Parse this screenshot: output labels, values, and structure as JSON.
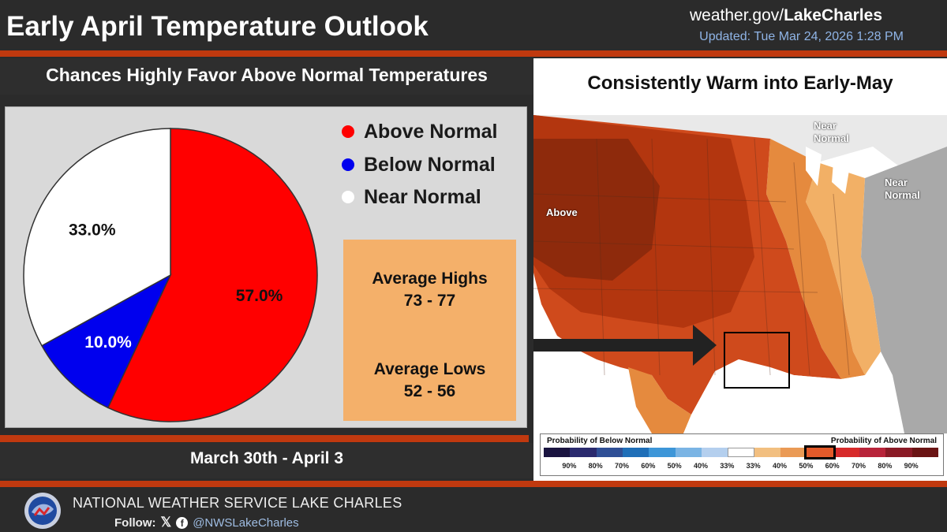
{
  "header": {
    "title": "Early April Temperature Outlook",
    "site_prefix": "weather.gov/",
    "site_office": "LakeCharles",
    "updated": "Updated: Tue Mar 24, 2026 1:28 PM"
  },
  "left": {
    "subtitle": "Chances Highly Favor Above Normal Temperatures",
    "date_range": "March 30th - April 3",
    "legend": [
      {
        "label": "Above Normal",
        "color": "#ff0000"
      },
      {
        "label": "Below Normal",
        "color": "#0000ee"
      },
      {
        "label": "Near Normal",
        "color": "#ffffff"
      }
    ],
    "averages": {
      "highs_label": "Average Highs",
      "highs_range": "73 - 77",
      "lows_label": "Average Lows",
      "lows_range": "52 - 56"
    }
  },
  "chart_data": {
    "type": "pie",
    "title": "Chances Highly Favor Above Normal Temperatures",
    "categories": [
      "Above Normal",
      "Below Normal",
      "Near Normal"
    ],
    "values": [
      57.0,
      10.0,
      33.0
    ],
    "labels": [
      "57.0%",
      "10.0%",
      "33.0%"
    ],
    "colors": [
      "#ff0000",
      "#0000ee",
      "#ffffff"
    ],
    "legend_position": "right"
  },
  "map": {
    "title": "Consistently Warm into Early-May",
    "labels": {
      "above": "Above",
      "near_normal_1": "Near\nNormal",
      "near_normal_2": "Near\nNormal"
    },
    "scale": {
      "below_label": "Probability of Below Normal",
      "above_label": "Probability of Above Normal",
      "ticks": [
        "90%",
        "80%",
        "70%",
        "60%",
        "50%",
        "40%",
        "33%",
        "33%",
        "40%",
        "50%",
        "60%",
        "70%",
        "80%",
        "90%"
      ],
      "colors": [
        "#1a1440",
        "#2a2a6e",
        "#2f4f96",
        "#1f6fb8",
        "#3d96d8",
        "#7ab4e4",
        "#b4cfee",
        "#ffffff",
        "#f2bf80",
        "#ea9a55",
        "#e35a2a",
        "#d72a2a",
        "#b8243a",
        "#8a1a26",
        "#6a1414"
      ],
      "highlight_index": 10
    }
  },
  "footer": {
    "office": "NATIONAL WEATHER SERVICE LAKE CHARLES",
    "follow": "Follow:",
    "handle": "@NWSLakeCharles"
  }
}
